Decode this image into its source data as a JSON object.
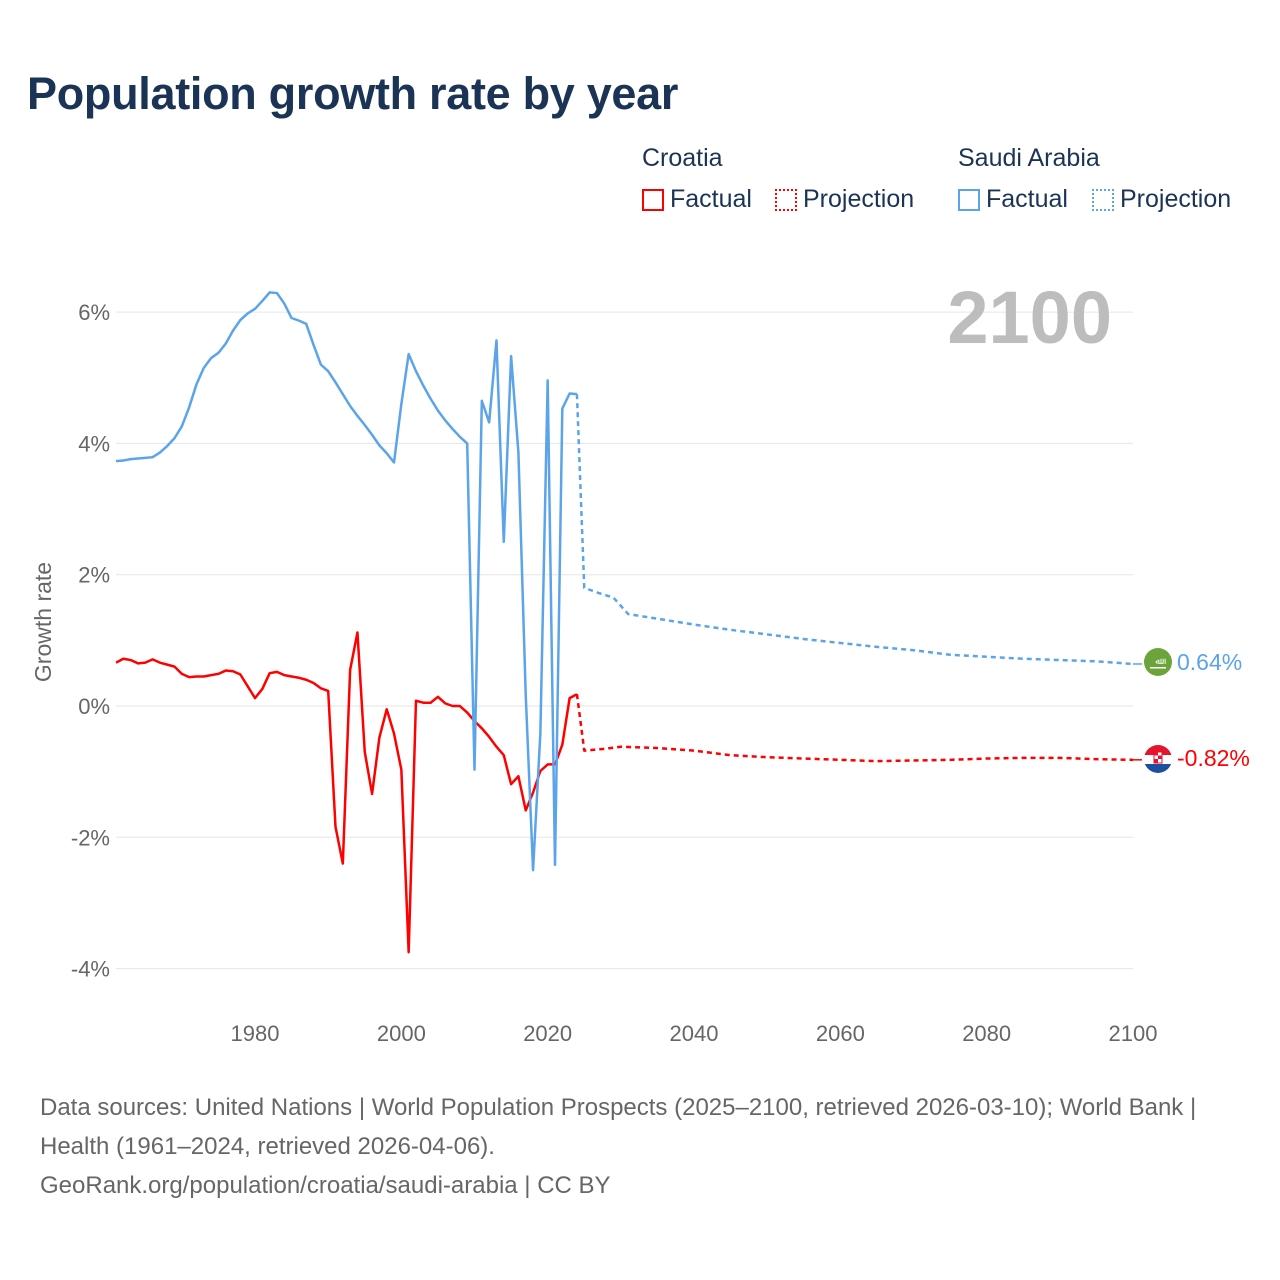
{
  "title": "Population growth rate by year",
  "legend": {
    "groups": [
      {
        "name": "Croatia",
        "factual": "Factual",
        "projection": "Projection",
        "color": "#ff0000"
      },
      {
        "name": "Saudi Arabia",
        "factual": "Factual",
        "projection": "Projection",
        "color": "#5ba4ea"
      }
    ]
  },
  "year_label": "2100",
  "end_labels": {
    "saudi": "0.64%",
    "croatia": "-0.82%"
  },
  "footer": {
    "sources": "Data sources: United Nations | World Population Prospects (2025–2100, retrieved 2026-03-10); World Bank | Health (1961–2024, retrieved 2026-04-06).",
    "credit": "GeoRank.org/population/croatia/saudi-arabia | CC BY"
  },
  "chart_data": {
    "type": "line",
    "title": "Population growth rate by year",
    "xlabel": "",
    "ylabel": "Growth rate",
    "xlim": [
      1961,
      2100
    ],
    "ylim": [
      -4.5,
      6.5
    ],
    "xticks": [
      1980,
      2000,
      2020,
      2040,
      2060,
      2080,
      2100
    ],
    "xtick_labels": [
      "1980",
      "2000",
      "2020",
      "2040",
      "2060",
      "2080",
      "2100"
    ],
    "yticks": [
      6,
      4,
      2,
      0,
      -2,
      -4
    ],
    "ytick_labels": [
      "6%",
      "4%",
      "2%",
      "0%",
      "-2%",
      "-4%"
    ],
    "grid": true,
    "legend_position": "top-right",
    "series": [
      {
        "name": "Croatia Factual",
        "color": "#ff0000",
        "dash": false,
        "points": [
          [
            1961,
            0.66
          ],
          [
            1962,
            0.72
          ],
          [
            1963,
            0.7
          ],
          [
            1964,
            0.65
          ],
          [
            1965,
            0.66
          ],
          [
            1966,
            0.71
          ],
          [
            1967,
            0.66
          ],
          [
            1968,
            0.63
          ],
          [
            1969,
            0.6
          ],
          [
            1970,
            0.49
          ],
          [
            1971,
            0.44
          ],
          [
            1972,
            0.45
          ],
          [
            1973,
            0.45
          ],
          [
            1974,
            0.47
          ],
          [
            1975,
            0.49
          ],
          [
            1976,
            0.54
          ],
          [
            1977,
            0.53
          ],
          [
            1978,
            0.48
          ],
          [
            1979,
            0.3
          ],
          [
            1980,
            0.12
          ],
          [
            1981,
            0.26
          ],
          [
            1982,
            0.5
          ],
          [
            1983,
            0.52
          ],
          [
            1984,
            0.47
          ],
          [
            1985,
            0.45
          ],
          [
            1986,
            0.43
          ],
          [
            1987,
            0.4
          ],
          [
            1988,
            0.35
          ],
          [
            1989,
            0.27
          ],
          [
            1990,
            0.23
          ],
          [
            1991,
            -1.84
          ],
          [
            1992,
            -2.4
          ],
          [
            1993,
            0.55
          ],
          [
            1994,
            1.12
          ],
          [
            1995,
            -0.7
          ],
          [
            1996,
            -1.34
          ],
          [
            1997,
            -0.48
          ],
          [
            1998,
            -0.05
          ],
          [
            1999,
            -0.42
          ],
          [
            2000,
            -0.97
          ],
          [
            2001,
            -3.75
          ],
          [
            2002,
            0.08
          ],
          [
            2003,
            0.05
          ],
          [
            2004,
            0.05
          ],
          [
            2005,
            0.14
          ],
          [
            2006,
            0.04
          ],
          [
            2007,
            0.0
          ],
          [
            2008,
            0.0
          ],
          [
            2009,
            -0.1
          ],
          [
            2010,
            -0.23
          ],
          [
            2011,
            -0.34
          ],
          [
            2012,
            -0.47
          ],
          [
            2013,
            -0.62
          ],
          [
            2014,
            -0.75
          ],
          [
            2015,
            -1.19
          ],
          [
            2016,
            -1.07
          ],
          [
            2017,
            -1.59
          ],
          [
            2018,
            -1.32
          ],
          [
            2019,
            -0.99
          ],
          [
            2020,
            -0.89
          ],
          [
            2021,
            -0.89
          ],
          [
            2022,
            -0.59
          ],
          [
            2023,
            0.12
          ],
          [
            2024,
            0.18
          ]
        ]
      },
      {
        "name": "Croatia Projection",
        "color": "#ff0000",
        "dash": true,
        "points": [
          [
            2024,
            0.18
          ],
          [
            2025,
            -0.68
          ],
          [
            2028,
            -0.65
          ],
          [
            2030,
            -0.62
          ],
          [
            2035,
            -0.64
          ],
          [
            2040,
            -0.68
          ],
          [
            2045,
            -0.75
          ],
          [
            2050,
            -0.78
          ],
          [
            2055,
            -0.8
          ],
          [
            2060,
            -0.82
          ],
          [
            2065,
            -0.84
          ],
          [
            2070,
            -0.83
          ],
          [
            2075,
            -0.82
          ],
          [
            2080,
            -0.8
          ],
          [
            2085,
            -0.79
          ],
          [
            2090,
            -0.79
          ],
          [
            2095,
            -0.81
          ],
          [
            2100,
            -0.82
          ]
        ]
      },
      {
        "name": "Saudi Arabia Factual",
        "color": "#5ba4ea",
        "dash": false,
        "points": [
          [
            1961,
            3.73
          ],
          [
            1962,
            3.74
          ],
          [
            1963,
            3.76
          ],
          [
            1964,
            3.77
          ],
          [
            1965,
            3.78
          ],
          [
            1966,
            3.79
          ],
          [
            1967,
            3.86
          ],
          [
            1968,
            3.96
          ],
          [
            1969,
            4.08
          ],
          [
            1970,
            4.26
          ],
          [
            1971,
            4.55
          ],
          [
            1972,
            4.9
          ],
          [
            1973,
            5.15
          ],
          [
            1974,
            5.3
          ],
          [
            1975,
            5.38
          ],
          [
            1976,
            5.52
          ],
          [
            1977,
            5.72
          ],
          [
            1978,
            5.88
          ],
          [
            1979,
            5.98
          ],
          [
            1980,
            6.05
          ],
          [
            1981,
            6.17
          ],
          [
            1982,
            6.3
          ],
          [
            1983,
            6.29
          ],
          [
            1984,
            6.13
          ],
          [
            1985,
            5.91
          ],
          [
            1986,
            5.87
          ],
          [
            1987,
            5.82
          ],
          [
            1988,
            5.5
          ],
          [
            1989,
            5.2
          ],
          [
            1990,
            5.1
          ],
          [
            1991,
            4.93
          ],
          [
            1992,
            4.75
          ],
          [
            1993,
            4.57
          ],
          [
            1994,
            4.42
          ],
          [
            1995,
            4.28
          ],
          [
            1996,
            4.13
          ],
          [
            1997,
            3.97
          ],
          [
            1998,
            3.85
          ],
          [
            1999,
            3.71
          ],
          [
            2000,
            4.6
          ],
          [
            2001,
            5.36
          ],
          [
            2002,
            5.1
          ],
          [
            2003,
            4.88
          ],
          [
            2004,
            4.68
          ],
          [
            2005,
            4.5
          ],
          [
            2006,
            4.35
          ],
          [
            2007,
            4.22
          ],
          [
            2008,
            4.1
          ],
          [
            2009,
            4.0
          ],
          [
            2010,
            -0.97
          ],
          [
            2011,
            4.65
          ],
          [
            2012,
            4.32
          ],
          [
            2013,
            5.57
          ],
          [
            2014,
            2.5
          ],
          [
            2015,
            5.33
          ],
          [
            2016,
            3.86
          ],
          [
            2017,
            0.17
          ],
          [
            2018,
            -2.5
          ],
          [
            2019,
            -0.42
          ],
          [
            2020,
            4.96
          ],
          [
            2021,
            -2.42
          ],
          [
            2022,
            4.53
          ],
          [
            2023,
            4.76
          ],
          [
            2024,
            4.75
          ]
        ]
      },
      {
        "name": "Saudi Arabia Projection",
        "color": "#5ba4ea",
        "dash": true,
        "points": [
          [
            2024,
            4.75
          ],
          [
            2025,
            1.8
          ],
          [
            2027,
            1.72
          ],
          [
            2029,
            1.65
          ],
          [
            2031,
            1.4
          ],
          [
            2035,
            1.33
          ],
          [
            2040,
            1.24
          ],
          [
            2045,
            1.16
          ],
          [
            2050,
            1.09
          ],
          [
            2055,
            1.02
          ],
          [
            2060,
            0.96
          ],
          [
            2065,
            0.9
          ],
          [
            2070,
            0.85
          ],
          [
            2075,
            0.78
          ],
          [
            2080,
            0.75
          ],
          [
            2085,
            0.72
          ],
          [
            2090,
            0.7
          ],
          [
            2095,
            0.68
          ],
          [
            2100,
            0.64
          ]
        ]
      }
    ]
  }
}
